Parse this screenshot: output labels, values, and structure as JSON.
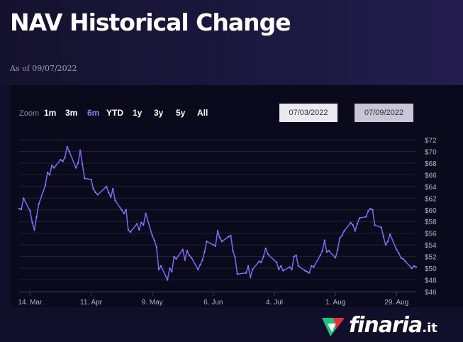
{
  "header": {
    "title": "NAV Historical Change",
    "as_of": "As of 09/07/2022"
  },
  "zoom": {
    "label": "Zoom",
    "buttons": [
      "1m",
      "3m",
      "6m",
      "YTD",
      "1y",
      "3y",
      "5y",
      "All"
    ],
    "active": "6m"
  },
  "range": {
    "from": "07/03/2022",
    "to": "07/09/2022"
  },
  "brand": {
    "name": "finaria",
    "tld": ".it"
  },
  "colors": {
    "line": "#7b62e6",
    "background": "#0b0a1c",
    "header": "#1c1840",
    "active_zoom": "#8f7cf0"
  },
  "chart_data": {
    "type": "line",
    "title": "NAV Historical Change",
    "xlabel": "",
    "ylabel": "",
    "x_ticks": [
      "14. Mar",
      "11. Apr",
      "9. May",
      "6. Jun",
      "4. Jul",
      "1. Aug",
      "29. Aug"
    ],
    "y_ticks": [
      "$46",
      "$48",
      "$50",
      "$52",
      "$54",
      "$56",
      "$58",
      "$60",
      "$62",
      "$64",
      "$66",
      "$68",
      "$70",
      "$72"
    ],
    "ylim": [
      46,
      72
    ],
    "xlim": [
      "2022-03-09",
      "2022-09-07"
    ],
    "grid": true,
    "series": [
      {
        "values": [
          {
            "x": "2022-03-09",
            "y": 60.2
          },
          {
            "x": "2022-03-10",
            "y": 60.1
          },
          {
            "x": "2022-03-11",
            "y": 62.0
          },
          {
            "x": "2022-03-14",
            "y": 59.8
          },
          {
            "x": "2022-03-15",
            "y": 57.8
          },
          {
            "x": "2022-03-16",
            "y": 56.6
          },
          {
            "x": "2022-03-17",
            "y": 58.8
          },
          {
            "x": "2022-03-18",
            "y": 61.0
          },
          {
            "x": "2022-03-21",
            "y": 64.2
          },
          {
            "x": "2022-03-22",
            "y": 66.4
          },
          {
            "x": "2022-03-23",
            "y": 66.0
          },
          {
            "x": "2022-03-24",
            "y": 67.6
          },
          {
            "x": "2022-03-25",
            "y": 67.2
          },
          {
            "x": "2022-03-28",
            "y": 68.6
          },
          {
            "x": "2022-03-29",
            "y": 68.3
          },
          {
            "x": "2022-03-30",
            "y": 69.0
          },
          {
            "x": "2022-03-31",
            "y": 70.8
          },
          {
            "x": "2022-04-01",
            "y": 70.0
          },
          {
            "x": "2022-04-04",
            "y": 67.2
          },
          {
            "x": "2022-04-05",
            "y": 68.0
          },
          {
            "x": "2022-04-06",
            "y": 70.2
          },
          {
            "x": "2022-04-07",
            "y": 67.8
          },
          {
            "x": "2022-04-08",
            "y": 65.4
          },
          {
            "x": "2022-04-11",
            "y": 65.2
          },
          {
            "x": "2022-04-12",
            "y": 63.6
          },
          {
            "x": "2022-04-13",
            "y": 63.0
          },
          {
            "x": "2022-04-14",
            "y": 62.6
          },
          {
            "x": "2022-04-18",
            "y": 64.0
          },
          {
            "x": "2022-04-19",
            "y": 63.0
          },
          {
            "x": "2022-04-20",
            "y": 62.2
          },
          {
            "x": "2022-04-21",
            "y": 63.6
          },
          {
            "x": "2022-04-22",
            "y": 61.6
          },
          {
            "x": "2022-04-25",
            "y": 60.0
          },
          {
            "x": "2022-04-26",
            "y": 59.4
          },
          {
            "x": "2022-04-27",
            "y": 60.0
          },
          {
            "x": "2022-04-28",
            "y": 56.6
          },
          {
            "x": "2022-04-29",
            "y": 56.2
          },
          {
            "x": "2022-05-02",
            "y": 57.6
          },
          {
            "x": "2022-05-03",
            "y": 56.6
          },
          {
            "x": "2022-05-04",
            "y": 57.8
          },
          {
            "x": "2022-05-05",
            "y": 57.4
          },
          {
            "x": "2022-05-06",
            "y": 59.4
          },
          {
            "x": "2022-05-09",
            "y": 55.6
          },
          {
            "x": "2022-05-10",
            "y": 54.8
          },
          {
            "x": "2022-05-11",
            "y": 53.6
          },
          {
            "x": "2022-05-12",
            "y": 49.8
          },
          {
            "x": "2022-05-13",
            "y": 50.4
          },
          {
            "x": "2022-05-16",
            "y": 48.0
          },
          {
            "x": "2022-05-17",
            "y": 50.0
          },
          {
            "x": "2022-05-18",
            "y": 49.4
          },
          {
            "x": "2022-05-19",
            "y": 52.0
          },
          {
            "x": "2022-05-20",
            "y": 51.6
          },
          {
            "x": "2022-05-23",
            "y": 53.2
          },
          {
            "x": "2022-05-24",
            "y": 51.4
          },
          {
            "x": "2022-05-25",
            "y": 53.0
          },
          {
            "x": "2022-05-26",
            "y": 52.2
          },
          {
            "x": "2022-05-27",
            "y": 51.8
          },
          {
            "x": "2022-05-30",
            "y": 49.8
          },
          {
            "x": "2022-05-31",
            "y": 50.6
          },
          {
            "x": "2022-06-01",
            "y": 51.4
          },
          {
            "x": "2022-06-02",
            "y": 52.8
          },
          {
            "x": "2022-06-03",
            "y": 54.6
          },
          {
            "x": "2022-06-06",
            "y": 54.0
          },
          {
            "x": "2022-06-07",
            "y": 53.8
          },
          {
            "x": "2022-06-08",
            "y": 56.4
          },
          {
            "x": "2022-06-09",
            "y": 55.2
          },
          {
            "x": "2022-06-10",
            "y": 54.6
          },
          {
            "x": "2022-06-13",
            "y": 55.4
          },
          {
            "x": "2022-06-14",
            "y": 55.6
          },
          {
            "x": "2022-06-15",
            "y": 53.0
          },
          {
            "x": "2022-06-16",
            "y": 51.8
          },
          {
            "x": "2022-06-17",
            "y": 49.0
          },
          {
            "x": "2022-06-21",
            "y": 49.2
          },
          {
            "x": "2022-06-22",
            "y": 50.4
          },
          {
            "x": "2022-06-23",
            "y": 48.4
          },
          {
            "x": "2022-06-24",
            "y": 49.8
          },
          {
            "x": "2022-06-27",
            "y": 51.2
          },
          {
            "x": "2022-06-28",
            "y": 51.0
          },
          {
            "x": "2022-06-29",
            "y": 52.0
          },
          {
            "x": "2022-06-30",
            "y": 53.4
          },
          {
            "x": "2022-07-01",
            "y": 52.4
          },
          {
            "x": "2022-07-05",
            "y": 51.0
          },
          {
            "x": "2022-07-06",
            "y": 49.8
          },
          {
            "x": "2022-07-07",
            "y": 50.4
          },
          {
            "x": "2022-07-08",
            "y": 49.6
          },
          {
            "x": "2022-07-11",
            "y": 50.2
          },
          {
            "x": "2022-07-12",
            "y": 49.8
          },
          {
            "x": "2022-07-13",
            "y": 52.0
          },
          {
            "x": "2022-07-14",
            "y": 52.2
          },
          {
            "x": "2022-07-15",
            "y": 50.4
          },
          {
            "x": "2022-07-18",
            "y": 49.6
          },
          {
            "x": "2022-07-19",
            "y": 49.4
          },
          {
            "x": "2022-07-20",
            "y": 49.2
          },
          {
            "x": "2022-07-21",
            "y": 50.4
          },
          {
            "x": "2022-07-22",
            "y": 50.2
          },
          {
            "x": "2022-07-25",
            "y": 52.2
          },
          {
            "x": "2022-07-26",
            "y": 53.0
          },
          {
            "x": "2022-07-27",
            "y": 54.8
          },
          {
            "x": "2022-07-28",
            "y": 52.8
          },
          {
            "x": "2022-07-29",
            "y": 53.0
          },
          {
            "x": "2022-08-01",
            "y": 51.8
          },
          {
            "x": "2022-08-02",
            "y": 53.2
          },
          {
            "x": "2022-08-03",
            "y": 55.2
          },
          {
            "x": "2022-08-04",
            "y": 55.6
          },
          {
            "x": "2022-08-05",
            "y": 56.4
          },
          {
            "x": "2022-08-08",
            "y": 57.8
          },
          {
            "x": "2022-08-09",
            "y": 57.4
          },
          {
            "x": "2022-08-10",
            "y": 56.4
          },
          {
            "x": "2022-08-11",
            "y": 57.6
          },
          {
            "x": "2022-08-12",
            "y": 58.6
          },
          {
            "x": "2022-08-15",
            "y": 58.8
          },
          {
            "x": "2022-08-16",
            "y": 59.8
          },
          {
            "x": "2022-08-17",
            "y": 60.2
          },
          {
            "x": "2022-08-18",
            "y": 60.0
          },
          {
            "x": "2022-08-19",
            "y": 57.4
          },
          {
            "x": "2022-08-22",
            "y": 57.0
          },
          {
            "x": "2022-08-23",
            "y": 55.4
          },
          {
            "x": "2022-08-24",
            "y": 54.0
          },
          {
            "x": "2022-08-25",
            "y": 54.6
          },
          {
            "x": "2022-08-26",
            "y": 55.8
          },
          {
            "x": "2022-08-29",
            "y": 53.2
          },
          {
            "x": "2022-08-30",
            "y": 52.6
          },
          {
            "x": "2022-08-31",
            "y": 51.8
          },
          {
            "x": "2022-09-01",
            "y": 51.6
          },
          {
            "x": "2022-09-02",
            "y": 51.2
          },
          {
            "x": "2022-09-05",
            "y": 50.0
          },
          {
            "x": "2022-09-06",
            "y": 50.4
          },
          {
            "x": "2022-09-07",
            "y": 50.2
          }
        ]
      }
    ]
  }
}
